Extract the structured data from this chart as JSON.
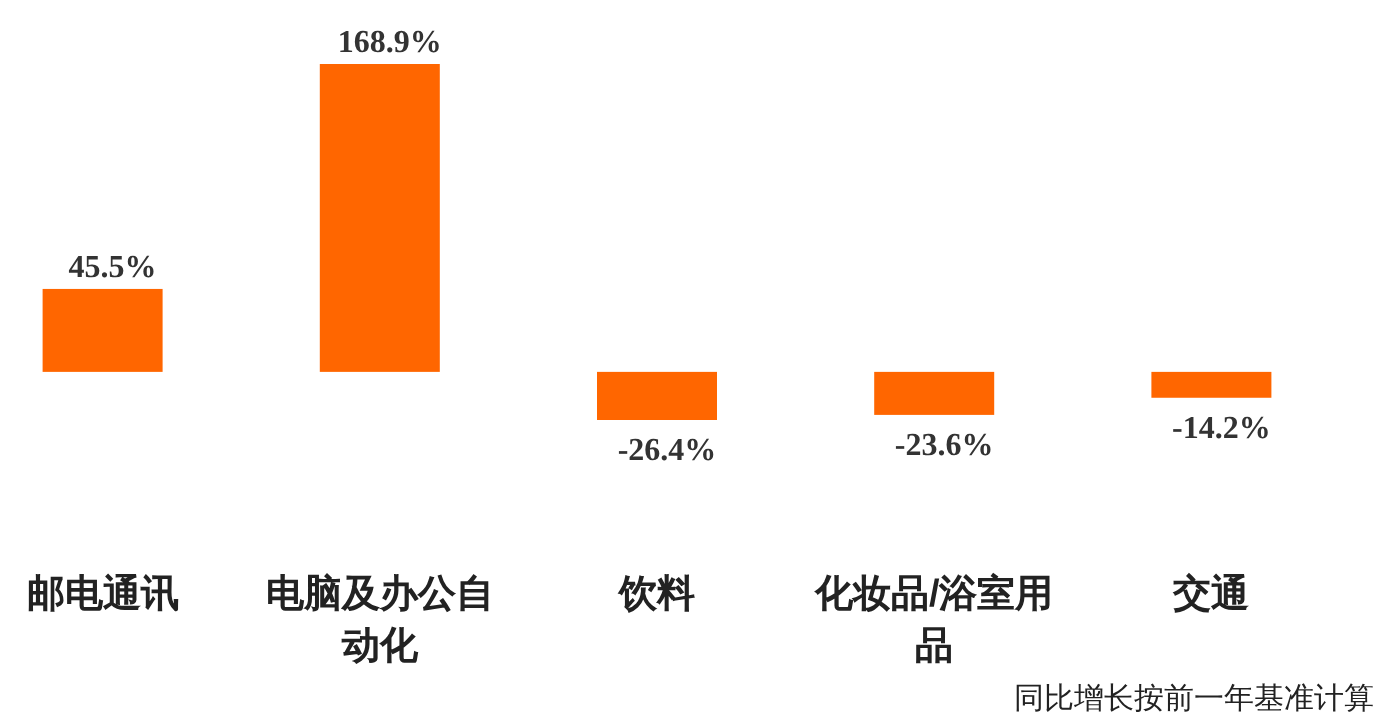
{
  "chart_data": {
    "type": "bar",
    "categories": [
      "邮电通讯",
      "电脑及办公自动化",
      "饮料",
      "化妆品/浴室用品",
      "交通"
    ],
    "values": [
      45.5,
      168.9,
      -26.4,
      -23.6,
      -14.2
    ],
    "value_labels": [
      "45.5%",
      "168.9%",
      "-26.4%",
      "-23.6%",
      "-14.2%"
    ],
    "color": "#ff6600",
    "annotations": [
      "同比增长按前一年基准计算"
    ]
  }
}
